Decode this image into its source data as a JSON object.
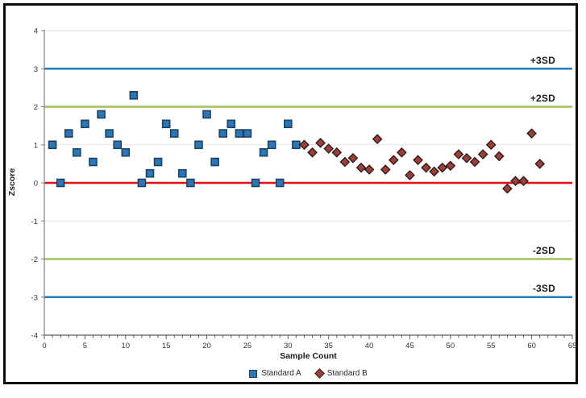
{
  "chart_data": {
    "type": "scatter",
    "title": "",
    "xlabel": "Sample Count",
    "ylabel": "Zscore",
    "xlim": [
      0,
      65
    ],
    "ylim": [
      -4,
      4
    ],
    "x_ticks": [
      0,
      5,
      10,
      15,
      20,
      25,
      30,
      35,
      40,
      45,
      50,
      55,
      60,
      65
    ],
    "x_minor_tick_step": 1,
    "y_ticks": [
      -4,
      -3,
      -2,
      -1,
      0,
      1,
      2,
      3,
      4
    ],
    "grid": "horizontal-light-gray",
    "legend_position": "bottom-center",
    "colors": {
      "grid": "#e2e2e2",
      "axis": "#7f7f7f",
      "tick_text": "#333333",
      "sd3_line": "#1f7ec2",
      "sd2_line": "#9cc359",
      "center_line": "#e31212"
    },
    "series": [
      {
        "name": "Standard A",
        "marker": "square",
        "fill": "#2e75b6",
        "stroke": "#1c4460",
        "x": [
          1,
          2,
          3,
          4,
          5,
          6,
          7,
          8,
          9,
          10,
          11,
          12,
          13,
          14,
          15,
          16,
          17,
          18,
          19,
          20,
          21,
          22,
          23,
          24,
          25,
          26,
          27,
          28,
          29,
          30,
          31
        ],
        "y": [
          1.0,
          0.0,
          1.3,
          0.8,
          1.55,
          0.55,
          1.8,
          1.3,
          1.0,
          0.8,
          2.3,
          0.0,
          0.25,
          0.55,
          1.55,
          1.3,
          0.25,
          0.0,
          1.0,
          1.8,
          0.55,
          1.3,
          1.55,
          1.3,
          1.3,
          0.0,
          0.8,
          1.0,
          0.0,
          1.55,
          1.0
        ]
      },
      {
        "name": "Standard B",
        "marker": "diamond",
        "fill": "#9a3f39",
        "stroke": "#301d1c",
        "x": [
          32,
          33,
          34,
          35,
          36,
          37,
          38,
          39,
          40,
          41,
          42,
          43,
          44,
          45,
          46,
          47,
          48,
          49,
          50,
          51,
          52,
          53,
          54,
          55,
          56,
          57,
          58,
          59,
          60,
          61
        ],
        "y": [
          1.0,
          0.8,
          1.05,
          0.9,
          0.8,
          0.55,
          0.65,
          0.4,
          0.35,
          1.15,
          0.35,
          0.6,
          0.8,
          0.2,
          0.6,
          0.4,
          0.3,
          0.4,
          0.45,
          0.75,
          0.65,
          0.55,
          0.75,
          1.0,
          0.7,
          -0.15,
          0.05,
          0.05,
          1.3,
          0.5
        ]
      }
    ],
    "ref_lines": [
      {
        "label": "+3SD",
        "y": 3,
        "color": "#1f7ec2"
      },
      {
        "label": "+2SD",
        "y": 2,
        "color": "#9cc359"
      },
      {
        "label": "",
        "y": 0,
        "color": "#e31212"
      },
      {
        "label": "-2SD",
        "y": -2,
        "color": "#9cc359"
      },
      {
        "label": "-3SD",
        "y": -3,
        "color": "#1f7ec2"
      }
    ]
  },
  "legend": {
    "items": [
      {
        "label": "Standard A"
      },
      {
        "label": "Standard B"
      }
    ]
  }
}
